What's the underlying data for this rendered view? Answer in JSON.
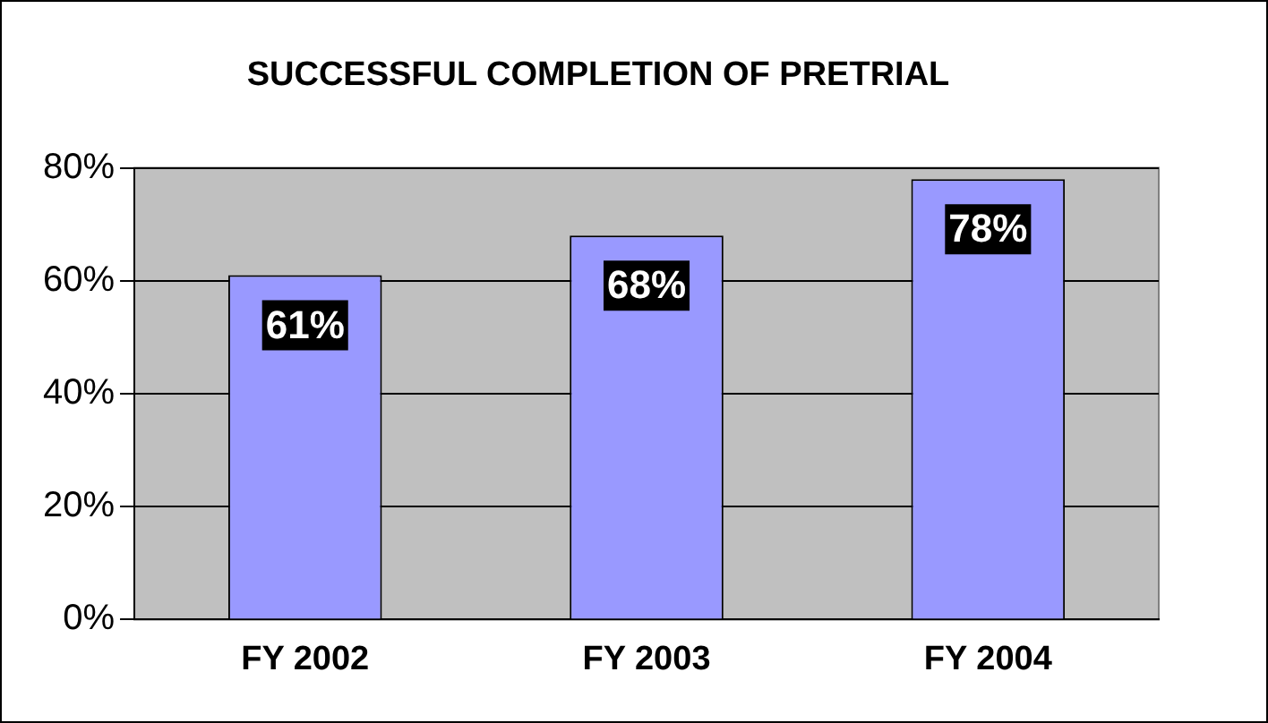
{
  "chart_data": {
    "type": "bar",
    "title": "SUCCESSFUL COMPLETION OF PRETRIAL",
    "categories": [
      "FY 2002",
      "FY 2003",
      "FY 2004"
    ],
    "values": [
      61,
      68,
      78
    ],
    "value_labels": [
      "61%",
      "68%",
      "78%"
    ],
    "color": "#9999ff",
    "ylim": [
      0,
      80
    ],
    "yticks": [
      {
        "value": 0,
        "label": "0%"
      },
      {
        "value": 20,
        "label": "20%"
      },
      {
        "value": 40,
        "label": "40%"
      },
      {
        "value": 60,
        "label": "60%"
      },
      {
        "value": 80,
        "label": "80%"
      }
    ],
    "grid": "y",
    "legend": false
  }
}
